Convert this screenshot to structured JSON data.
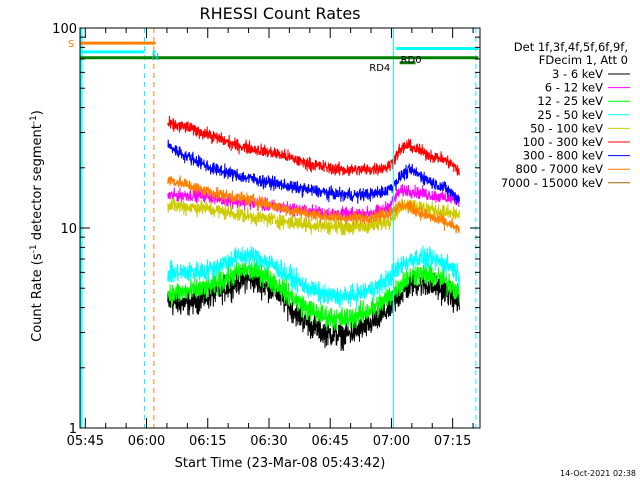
{
  "chart_data": {
    "type": "line",
    "title": "RHESSI Count Rates",
    "xlabel": "Start Time (23-Mar-08 05:43:42)",
    "ylabel_main": "Count Rate (s",
    "ylabel_sup1": "-1",
    "ylabel_mid": " detector segment",
    "ylabel_sup2": "-1",
    "ylabel_end": ")",
    "y_scale": "log",
    "ylim": [
      1,
      100
    ],
    "xlim_minutes": [
      0,
      98
    ],
    "x_ticks": [
      {
        "label": "05:45",
        "minute": 1.3
      },
      {
        "label": "06:00",
        "minute": 16.3
      },
      {
        "label": "06:15",
        "minute": 31.3
      },
      {
        "label": "06:30",
        "minute": 46.3
      },
      {
        "label": "06:45",
        "minute": 61.3
      },
      {
        "label": "07:00",
        "minute": 76.3
      },
      {
        "label": "07:15",
        "minute": 91.3
      }
    ],
    "y_ticks": [
      {
        "label": "1",
        "value": 1
      },
      {
        "label": "10",
        "value": 10
      },
      {
        "label": "100",
        "value": 100
      }
    ],
    "legend_header": [
      "Det 1f,3f,4f,5f,6f,9f,",
      "FDecim 1, Att 0"
    ],
    "legend_position": "right",
    "series": [
      {
        "name": "3 - 6 keV",
        "color": "#000000",
        "profile": [
          [
            21.5,
            4.2
          ],
          [
            26,
            4.2
          ],
          [
            31,
            4.5
          ],
          [
            34,
            4.8
          ],
          [
            38,
            5.3
          ],
          [
            41,
            5.6
          ],
          [
            44,
            5.3
          ],
          [
            48,
            4.8
          ],
          [
            52,
            3.9
          ],
          [
            56,
            3.3
          ],
          [
            60,
            3.0
          ],
          [
            64,
            2.9
          ],
          [
            67,
            3.0
          ],
          [
            70,
            3.2
          ],
          [
            73,
            3.5
          ],
          [
            76,
            4.0
          ],
          [
            79,
            4.8
          ],
          [
            82,
            5.3
          ],
          [
            85,
            5.2
          ],
          [
            88,
            5.0
          ],
          [
            91,
            4.6
          ],
          [
            93,
            4.1
          ]
        ]
      },
      {
        "name": "6 - 12 keV",
        "color": "#ff00ff",
        "profile": [
          [
            21.5,
            14.5
          ],
          [
            26,
            14.6
          ],
          [
            30,
            14.6
          ],
          [
            34,
            14.0
          ],
          [
            38,
            13.6
          ],
          [
            42,
            13.3
          ],
          [
            46,
            13.0
          ],
          [
            50,
            12.6
          ],
          [
            54,
            12.3
          ],
          [
            58,
            12.0
          ],
          [
            62,
            11.8
          ],
          [
            66,
            11.7
          ],
          [
            70,
            11.8
          ],
          [
            74,
            12.2
          ],
          [
            76,
            13.0
          ],
          [
            78,
            15.0
          ],
          [
            80,
            15.5
          ],
          [
            83,
            15.0
          ],
          [
            86,
            14.6
          ],
          [
            89,
            14.2
          ],
          [
            91,
            14.0
          ],
          [
            93,
            13.8
          ]
        ]
      },
      {
        "name": "12 - 25 keV",
        "color": "#00ff00",
        "profile": [
          [
            21.5,
            4.7
          ],
          [
            26,
            4.8
          ],
          [
            31,
            5.0
          ],
          [
            34,
            5.3
          ],
          [
            38,
            5.9
          ],
          [
            41,
            6.2
          ],
          [
            44,
            6.0
          ],
          [
            48,
            5.3
          ],
          [
            52,
            4.5
          ],
          [
            56,
            3.9
          ],
          [
            60,
            3.6
          ],
          [
            64,
            3.5
          ],
          [
            67,
            3.6
          ],
          [
            70,
            3.8
          ],
          [
            73,
            4.1
          ],
          [
            76,
            4.6
          ],
          [
            79,
            5.4
          ],
          [
            82,
            5.9
          ],
          [
            85,
            5.8
          ],
          [
            88,
            5.6
          ],
          [
            91,
            5.2
          ],
          [
            93,
            4.7
          ]
        ]
      },
      {
        "name": "25 - 50 keV",
        "color": "#00ffff",
        "profile": [
          [
            21.5,
            5.9
          ],
          [
            26,
            6.0
          ],
          [
            31,
            6.1
          ],
          [
            34,
            6.5
          ],
          [
            38,
            7.1
          ],
          [
            41,
            7.3
          ],
          [
            44,
            7.1
          ],
          [
            48,
            6.4
          ],
          [
            52,
            5.6
          ],
          [
            56,
            5.0
          ],
          [
            60,
            4.6
          ],
          [
            64,
            4.5
          ],
          [
            67,
            4.6
          ],
          [
            70,
            4.8
          ],
          [
            73,
            5.1
          ],
          [
            76,
            5.7
          ],
          [
            79,
            6.6
          ],
          [
            82,
            7.1
          ],
          [
            85,
            7.0
          ],
          [
            88,
            6.8
          ],
          [
            91,
            6.4
          ],
          [
            93,
            5.8
          ]
        ]
      },
      {
        "name": "50 - 100 keV",
        "color": "#cccc00",
        "profile": [
          [
            21.5,
            13.0
          ],
          [
            26,
            12.8
          ],
          [
            30,
            12.6
          ],
          [
            34,
            12.2
          ],
          [
            38,
            11.8
          ],
          [
            42,
            11.4
          ],
          [
            46,
            11.1
          ],
          [
            50,
            10.8
          ],
          [
            54,
            10.5
          ],
          [
            58,
            10.3
          ],
          [
            62,
            10.2
          ],
          [
            66,
            10.1
          ],
          [
            70,
            10.2
          ],
          [
            74,
            10.5
          ],
          [
            76,
            11.0
          ],
          [
            78,
            12.5
          ],
          [
            80,
            13.2
          ],
          [
            83,
            12.8
          ],
          [
            86,
            12.4
          ],
          [
            89,
            12.0
          ],
          [
            91,
            11.8
          ],
          [
            93,
            11.6
          ]
        ]
      },
      {
        "name": "100 - 300 keV",
        "color": "#ff0000",
        "profile": [
          [
            21.5,
            33
          ],
          [
            26,
            32
          ],
          [
            30,
            30
          ],
          [
            34,
            28
          ],
          [
            38,
            26
          ],
          [
            42,
            25
          ],
          [
            46,
            24
          ],
          [
            50,
            23
          ],
          [
            54,
            21.5
          ],
          [
            58,
            20.5
          ],
          [
            62,
            19.8
          ],
          [
            66,
            19.5
          ],
          [
            70,
            19.6
          ],
          [
            74,
            20.0
          ],
          [
            76,
            20.5
          ],
          [
            78,
            24
          ],
          [
            80,
            26
          ],
          [
            83,
            24.5
          ],
          [
            86,
            23
          ],
          [
            89,
            22
          ],
          [
            91,
            21
          ],
          [
            93,
            19
          ]
        ]
      },
      {
        "name": "300 - 800 keV",
        "color": "#0000ff",
        "profile": [
          [
            21.5,
            26
          ],
          [
            24,
            24
          ],
          [
            28,
            22
          ],
          [
            32,
            20
          ],
          [
            36,
            19
          ],
          [
            40,
            18
          ],
          [
            44,
            17.3
          ],
          [
            48,
            16.7
          ],
          [
            52,
            16.0
          ],
          [
            56,
            15.5
          ],
          [
            60,
            15.0
          ],
          [
            64,
            14.7
          ],
          [
            68,
            14.6
          ],
          [
            72,
            14.8
          ],
          [
            75,
            15.3
          ],
          [
            77,
            16.5
          ],
          [
            79,
            18.5
          ],
          [
            81,
            19.5
          ],
          [
            83,
            18.5
          ],
          [
            86,
            17.0
          ],
          [
            89,
            16.0
          ],
          [
            91,
            15.0
          ],
          [
            93,
            13.8
          ]
        ]
      },
      {
        "name": "800 - 7000 keV",
        "color": "#ff8000",
        "profile": [
          [
            21.5,
            17.5
          ],
          [
            26,
            16.5
          ],
          [
            30,
            15.5
          ],
          [
            34,
            14.8
          ],
          [
            38,
            14.3
          ],
          [
            42,
            13.8
          ],
          [
            46,
            13.2
          ],
          [
            50,
            12.5
          ],
          [
            54,
            12.0
          ],
          [
            58,
            11.6
          ],
          [
            62,
            11.3
          ],
          [
            66,
            11.2
          ],
          [
            70,
            11.3
          ],
          [
            74,
            11.6
          ],
          [
            76,
            12.0
          ],
          [
            78,
            12.8
          ],
          [
            80,
            13.0
          ],
          [
            83,
            12.0
          ],
          [
            86,
            11.3
          ],
          [
            89,
            10.8
          ],
          [
            91,
            10.3
          ],
          [
            93,
            9.7
          ]
        ]
      },
      {
        "name": "7000 - 15000 keV",
        "color": "#996600",
        "profile": []
      }
    ],
    "intervals": [
      {
        "label": "S",
        "color": "#ff8000",
        "y_value": 84,
        "start_minute": 0,
        "end_minute": 18.5
      },
      {
        "label": "",
        "color": "#00ffff",
        "y_value": 76,
        "start_minute": 0,
        "end_minute": 15.8
      },
      {
        "label": "N",
        "color": "#00ffff",
        "y_value": 76,
        "start_minute": 17.8,
        "end_minute": 18.5
      },
      {
        "label": "",
        "color": "#00ffff",
        "y_value": 79,
        "start_minute": 77.4,
        "end_minute": 97.6
      },
      {
        "label": "",
        "color": "#008000",
        "y_value": 71,
        "start_minute": 0,
        "end_minute": 97.6
      },
      {
        "label": "RD0",
        "color": "#008000",
        "y_value": 67,
        "start_minute": 78.3,
        "end_minute": 82.2
      },
      {
        "label": "RD4",
        "color": "#000000",
        "y_value": 67,
        "start_minute": 0,
        "end_minute": 0
      }
    ],
    "vertical_markers": [
      {
        "minute": 0.2,
        "color": "#00ffff",
        "style": "solid"
      },
      {
        "minute": 0.5,
        "color": "#00ffff",
        "style": "solid"
      },
      {
        "minute": 15.8,
        "color": "#00ffff",
        "style": "dashed"
      },
      {
        "minute": 18.1,
        "color": "#ff8000",
        "style": "dashed"
      },
      {
        "minute": 76.8,
        "color": "#00ffff",
        "style": "solid"
      },
      {
        "minute": 97.0,
        "color": "#00ffff",
        "style": "dashed"
      }
    ],
    "timestamp": "14-Oct-2021 02:38"
  }
}
